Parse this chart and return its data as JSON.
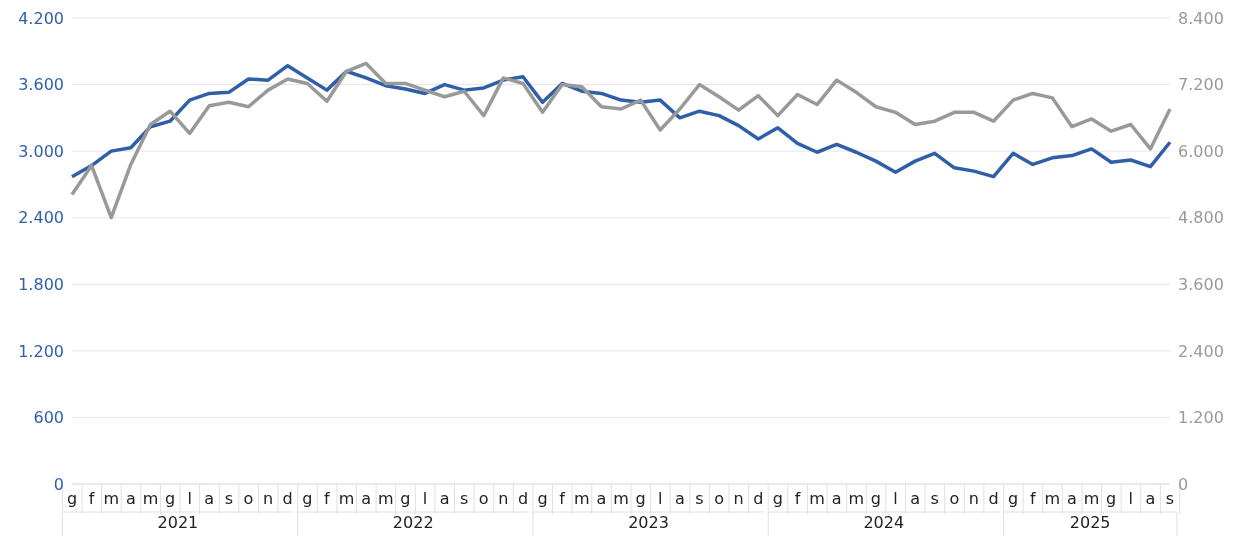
{
  "chart_data": {
    "type": "line",
    "categories": [
      "g",
      "f",
      "m",
      "a",
      "m",
      "g",
      "l",
      "a",
      "s",
      "o",
      "n",
      "d",
      "g",
      "f",
      "m",
      "a",
      "m",
      "g",
      "l",
      "a",
      "s",
      "o",
      "n",
      "d",
      "g",
      "f",
      "m",
      "a",
      "m",
      "g",
      "l",
      "a",
      "s",
      "o",
      "n",
      "d",
      "g",
      "f",
      "m",
      "a",
      "m",
      "g",
      "l",
      "a",
      "s",
      "o",
      "n",
      "d",
      "g",
      "f",
      "m",
      "a",
      "m",
      "g",
      "l",
      "a",
      "s"
    ],
    "series": [
      {
        "color": "#2e5fa8",
        "values": [
          2770,
          2870,
          3000,
          3030,
          3220,
          3270,
          3460,
          3520,
          3530,
          3650,
          3640,
          3770,
          3660,
          3550,
          3720,
          3660,
          3590,
          3560,
          3520,
          3600,
          3550,
          3570,
          3640,
          3670,
          3440,
          3610,
          3540,
          3520,
          3460,
          3440,
          3460,
          3300,
          3360,
          3320,
          3230,
          3110,
          3210,
          3070,
          2990,
          3060,
          2990,
          2910,
          2810,
          2910,
          2980,
          2850,
          2820,
          2770,
          2980,
          2880,
          2940,
          2960,
          3020,
          2900,
          2920,
          2860,
          3080
        ]
      },
      {
        "color": "#999999",
        "axis": "y2",
        "values": [
          5220,
          5740,
          4800,
          5760,
          6480,
          6720,
          6320,
          6820,
          6880,
          6800,
          7100,
          7300,
          7220,
          6900,
          7440,
          7580,
          7220,
          7220,
          7100,
          6980,
          7080,
          6640,
          7320,
          7220,
          6700,
          7200,
          7160,
          6800,
          6760,
          6920,
          6380,
          6760,
          7200,
          6980,
          6740,
          7000,
          6640,
          7020,
          6840,
          7280,
          7060,
          6800,
          6700,
          6480,
          6540,
          6700,
          6700,
          6540,
          6920,
          7040,
          6960,
          6440,
          6580,
          6360,
          6480,
          6040,
          6760
        ]
      }
    ],
    "ylim": [
      0,
      4200
    ],
    "yticks": [
      {
        "value": 0,
        "label": "0"
      },
      {
        "value": 600,
        "label": "600"
      },
      {
        "value": 1200,
        "label": "1.200"
      },
      {
        "value": 1800,
        "label": "1.800"
      },
      {
        "value": 2400,
        "label": "2.400"
      },
      {
        "value": 3000,
        "label": "3.000"
      },
      {
        "value": 3600,
        "label": "3.600"
      },
      {
        "value": 4200,
        "label": "4.200"
      }
    ],
    "y2lim": [
      0,
      8400
    ],
    "y2ticks": [
      {
        "value": 0,
        "label": "0"
      },
      {
        "value": 1200,
        "label": "1.200"
      },
      {
        "value": 2400,
        "label": "2.400"
      },
      {
        "value": 3600,
        "label": "3.600"
      },
      {
        "value": 4800,
        "label": "4.800"
      },
      {
        "value": 6000,
        "label": "6.000"
      },
      {
        "value": 7200,
        "label": "7.200"
      },
      {
        "value": 8400,
        "label": "8.400"
      }
    ],
    "grid": "y",
    "annotations": [
      "2021",
      "2022",
      "2023",
      "2024",
      "2025"
    ]
  }
}
